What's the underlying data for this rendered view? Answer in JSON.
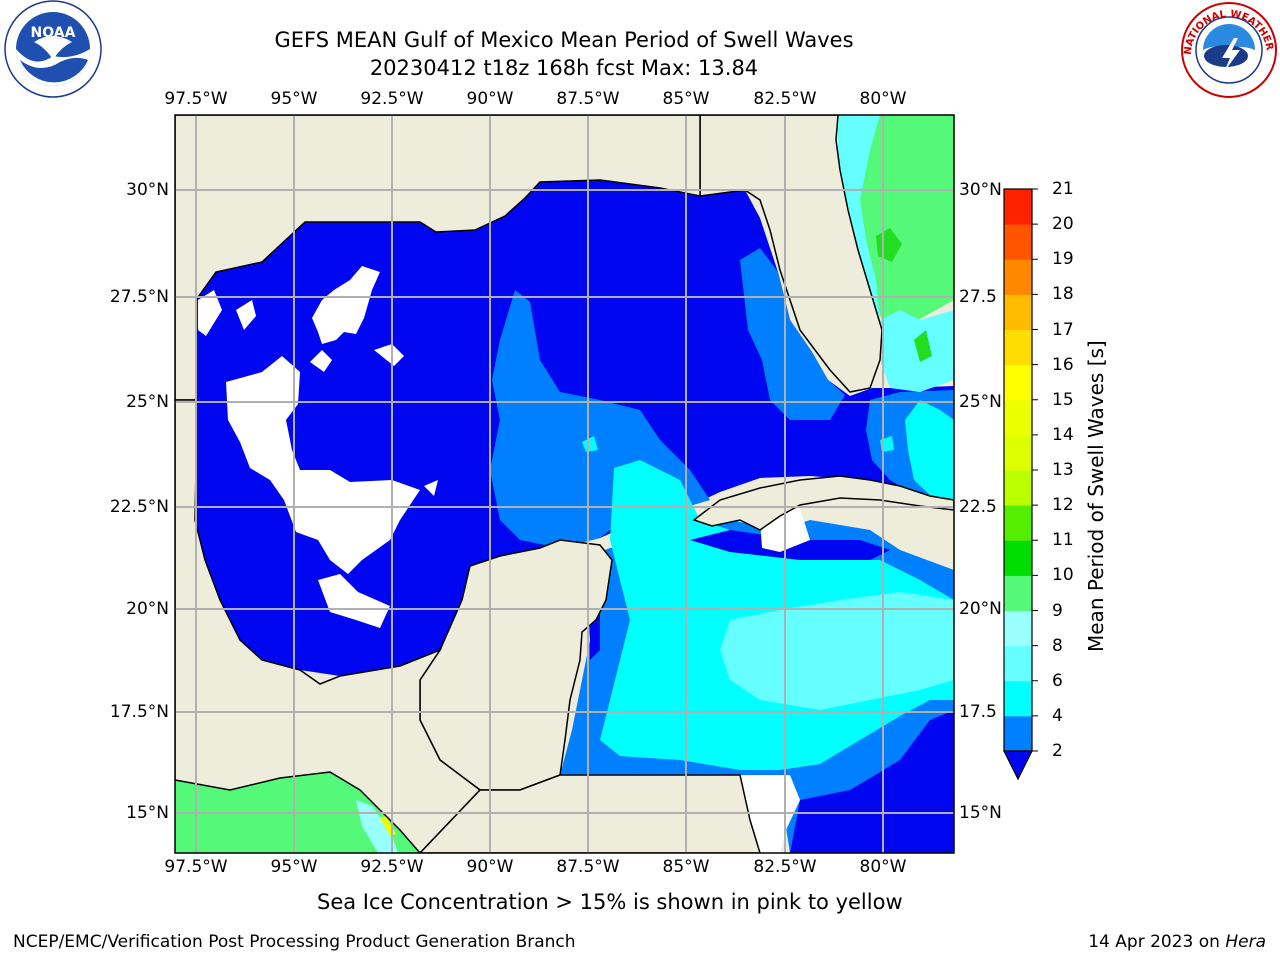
{
  "header": {
    "title_line1": "GEFS MEAN Gulf of Mexico Mean Period of Swell Waves",
    "title_line2": "20230412 t18z 168h fcst   Max: 13.84"
  },
  "logos": {
    "noaa": {
      "text": "NOAA",
      "ring_text": "NATIONAL OCEANIC AND ATMOSPHERIC ADMINISTRATION · U.S. DEPARTMENT OF COMMERCE"
    },
    "nws": {
      "ring_text": "NATIONAL WEATHER SERVICE"
    }
  },
  "map": {
    "lon_ticks": [
      "97.5°W",
      "95°W",
      "92.5°W",
      "90°W",
      "87.5°W",
      "85°W",
      "82.5°W",
      "80°W"
    ],
    "lat_ticks": [
      "30°N",
      "27.5°N",
      "25°N",
      "22.5°N",
      "20°N",
      "17.5°N",
      "15°N"
    ],
    "right_lat_ticks": [
      "30°N",
      "27.5",
      "25°N",
      "22.5",
      "20°N",
      "17.5",
      "15°N"
    ],
    "colors": {
      "land": "#eeeddc",
      "sea_2": "#0007f0",
      "sea_4": "#0080ff",
      "sea_6": "#00ffff",
      "sea_8": "#66ffff",
      "sea_9": "#99ffcc",
      "sea_10": "#55f97a",
      "sea_11": "#22dd22",
      "no_data": "#ffffff"
    }
  },
  "colorbar": {
    "label": "Mean Period of Swell Waves [s]",
    "ticks": [
      "2",
      "4",
      "6",
      "8",
      "9",
      "10",
      "11",
      "12",
      "13",
      "14",
      "15",
      "16",
      "17",
      "18",
      "19",
      "20",
      "21"
    ],
    "colors": [
      "#0080ff",
      "#00ffff",
      "#66ffff",
      "#99ffff",
      "#55f97a",
      "#00dd00",
      "#55ee00",
      "#bbff00",
      "#ddff00",
      "#eeff00",
      "#ffff00",
      "#ffdd00",
      "#ffbb00",
      "#ff8800",
      "#ff5500",
      "#ff2200"
    ],
    "extend_color": "#0007f0"
  },
  "notes": {
    "sea_ice": "Sea Ice Concentration > 15% is shown in pink to yellow"
  },
  "footer": {
    "left": "NCEP/EMC/Verification Post Processing Product Generation Branch",
    "right_prefix": "14 Apr 2023 on ",
    "right_host": "Hera"
  }
}
